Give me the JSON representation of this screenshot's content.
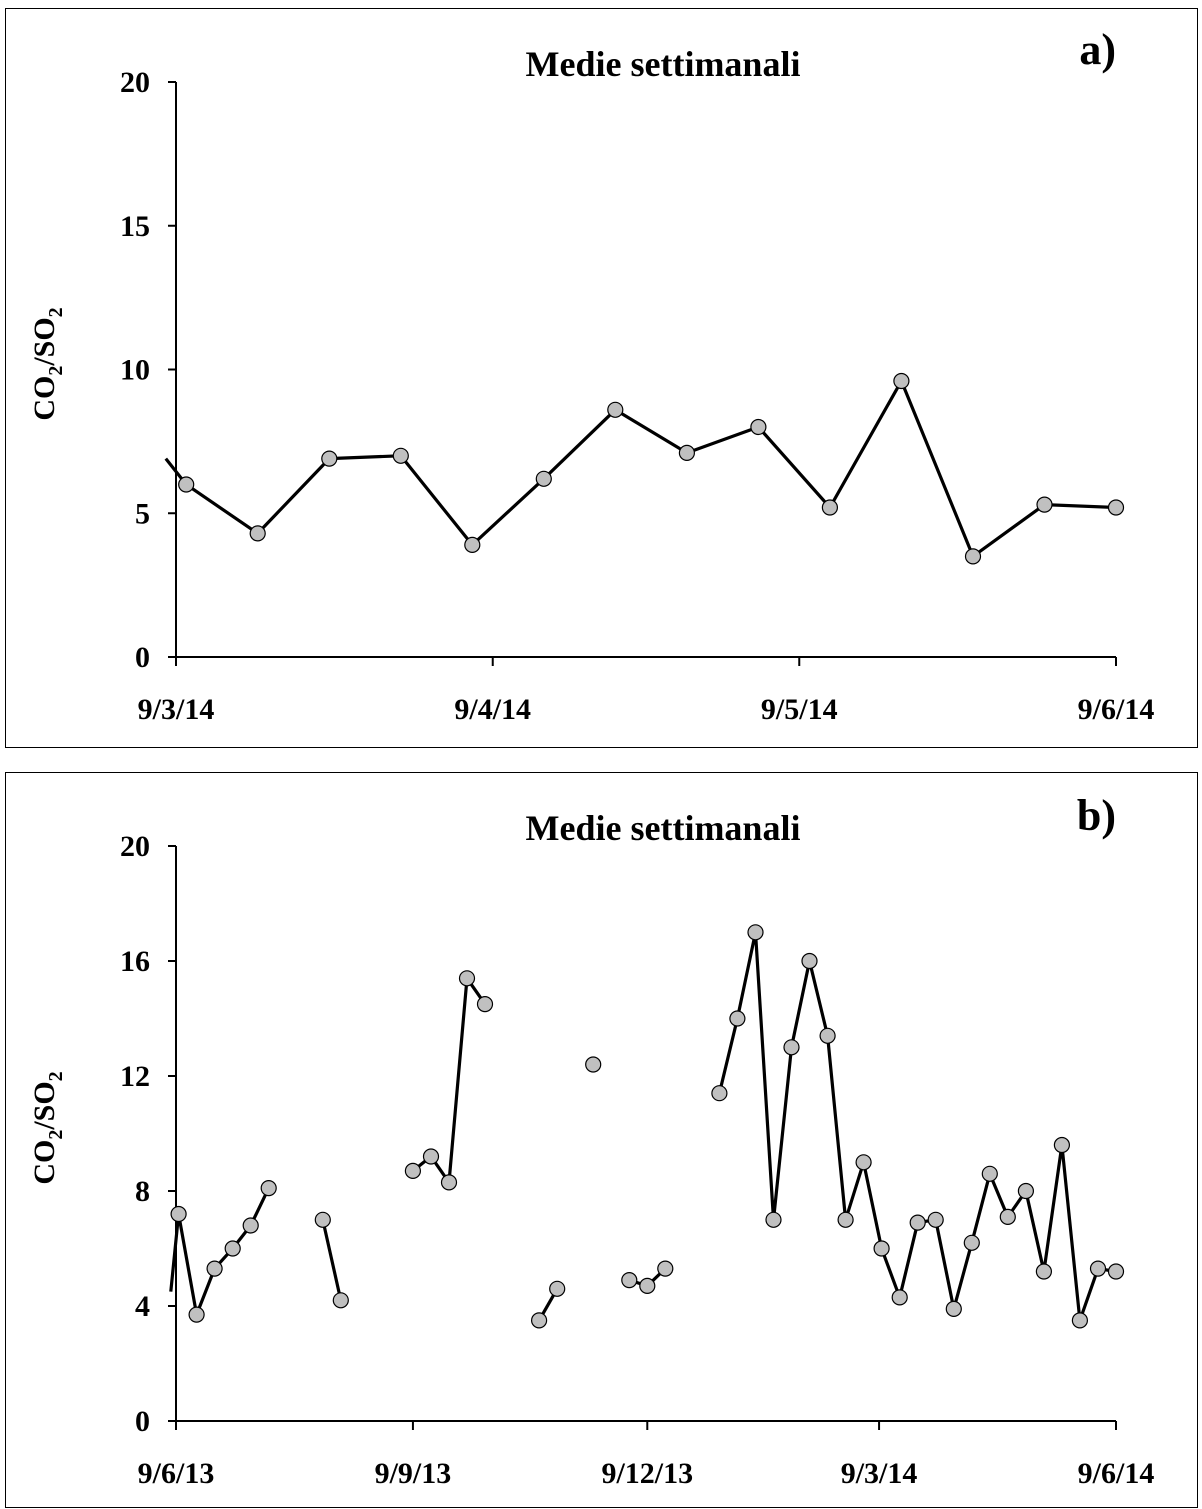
{
  "chart_data": [
    {
      "type": "line",
      "panel_label": "a)",
      "title": "Medie settimanali",
      "ylabel_main": "CO",
      "ylabel_sub1": "2",
      "ylabel_mid": "/SO",
      "ylabel_sub2": "2",
      "ylim": [
        0,
        20
      ],
      "yticks": [
        0,
        5,
        10,
        15,
        20
      ],
      "xlim": [
        "2014-03-09",
        "2014-06-09"
      ],
      "xticks": [
        {
          "date": "2014-03-09",
          "label": "9/3/14"
        },
        {
          "date": "2014-04-09",
          "label": "9/4/14"
        },
        {
          "date": "2014-05-09",
          "label": "9/5/14"
        },
        {
          "date": "2014-06-09",
          "label": "9/6/14"
        }
      ],
      "grid": false,
      "series": [
        {
          "marker_color": "#c0c0c0",
          "line_color": "#000000",
          "lead_in": {
            "date": "2014-03-08",
            "value": 6.9
          },
          "points": [
            {
              "date": "2014-03-10",
              "value": 6.0
            },
            {
              "date": "2014-03-17",
              "value": 4.3
            },
            {
              "date": "2014-03-24",
              "value": 6.9
            },
            {
              "date": "2014-03-31",
              "value": 7.0
            },
            {
              "date": "2014-04-07",
              "value": 3.9
            },
            {
              "date": "2014-04-14",
              "value": 6.2
            },
            {
              "date": "2014-04-21",
              "value": 8.6
            },
            {
              "date": "2014-04-28",
              "value": 7.1
            },
            {
              "date": "2014-05-05",
              "value": 8.0
            },
            {
              "date": "2014-05-12",
              "value": 5.2
            },
            {
              "date": "2014-05-19",
              "value": 9.6
            },
            {
              "date": "2014-05-26",
              "value": 3.5
            },
            {
              "date": "2014-06-02",
              "value": 5.3
            },
            {
              "date": "2014-06-09",
              "value": 5.2
            }
          ]
        }
      ]
    },
    {
      "type": "line",
      "panel_label": "b)",
      "title": "Medie settimanali",
      "ylabel_main": "CO",
      "ylabel_sub1": "2",
      "ylabel_mid": "/SO",
      "ylabel_sub2": "2",
      "ylim": [
        0,
        20
      ],
      "yticks": [
        0,
        4,
        8,
        12,
        16,
        20
      ],
      "xlim": [
        "2013-06-09",
        "2014-06-09"
      ],
      "xticks": [
        {
          "date": "2013-06-09",
          "label": "9/6/13"
        },
        {
          "date": "2013-09-09",
          "label": "9/9/13"
        },
        {
          "date": "2013-12-09",
          "label": "9/12/13"
        },
        {
          "date": "2014-03-09",
          "label": "9/3/14"
        },
        {
          "date": "2014-06-09",
          "label": "9/6/14"
        }
      ],
      "grid": false,
      "series": [
        {
          "marker_color": "#c0c0c0",
          "line_color": "#000000",
          "lead_in": {
            "date": "2013-06-07",
            "value": 4.5
          },
          "segments": [
            [
              {
                "date": "2013-06-10",
                "value": 7.2
              },
              {
                "date": "2013-06-17",
                "value": 3.7
              },
              {
                "date": "2013-06-24",
                "value": 5.3
              },
              {
                "date": "2013-07-01",
                "value": 6.0
              },
              {
                "date": "2013-07-08",
                "value": 6.8
              },
              {
                "date": "2013-07-15",
                "value": 8.1
              }
            ],
            [
              {
                "date": "2013-08-05",
                "value": 7.0
              },
              {
                "date": "2013-08-12",
                "value": 4.2
              }
            ],
            [
              {
                "date": "2013-09-09",
                "value": 8.7
              },
              {
                "date": "2013-09-16",
                "value": 9.2
              },
              {
                "date": "2013-09-23",
                "value": 8.3
              },
              {
                "date": "2013-09-30",
                "value": 15.4
              },
              {
                "date": "2013-10-07",
                "value": 14.5
              }
            ],
            [
              {
                "date": "2013-10-28",
                "value": 3.5
              },
              {
                "date": "2013-11-04",
                "value": 4.6
              }
            ],
            [
              {
                "date": "2013-11-18",
                "value": 12.4
              }
            ],
            [
              {
                "date": "2013-12-02",
                "value": 4.9
              },
              {
                "date": "2013-12-09",
                "value": 4.7
              },
              {
                "date": "2013-12-16",
                "value": 5.3
              }
            ],
            [
              {
                "date": "2014-01-06",
                "value": 11.4
              },
              {
                "date": "2014-01-13",
                "value": 14.0
              },
              {
                "date": "2014-01-20",
                "value": 17.0
              },
              {
                "date": "2014-01-27",
                "value": 7.0
              },
              {
                "date": "2014-02-03",
                "value": 13.0
              },
              {
                "date": "2014-02-10",
                "value": 16.0
              },
              {
                "date": "2014-02-17",
                "value": 13.4
              },
              {
                "date": "2014-02-24",
                "value": 7.0
              },
              {
                "date": "2014-03-03",
                "value": 9.0
              },
              {
                "date": "2014-03-10",
                "value": 6.0
              },
              {
                "date": "2014-03-17",
                "value": 4.3
              },
              {
                "date": "2014-03-24",
                "value": 6.9
              },
              {
                "date": "2014-03-31",
                "value": 7.0
              },
              {
                "date": "2014-04-07",
                "value": 3.9
              },
              {
                "date": "2014-04-14",
                "value": 6.2
              },
              {
                "date": "2014-04-21",
                "value": 8.6
              },
              {
                "date": "2014-04-28",
                "value": 7.1
              },
              {
                "date": "2014-05-05",
                "value": 8.0
              },
              {
                "date": "2014-05-12",
                "value": 5.2
              },
              {
                "date": "2014-05-19",
                "value": 9.6
              },
              {
                "date": "2014-05-26",
                "value": 3.5
              },
              {
                "date": "2014-06-02",
                "value": 5.3
              },
              {
                "date": "2014-06-09",
                "value": 5.2
              }
            ]
          ]
        }
      ]
    }
  ]
}
